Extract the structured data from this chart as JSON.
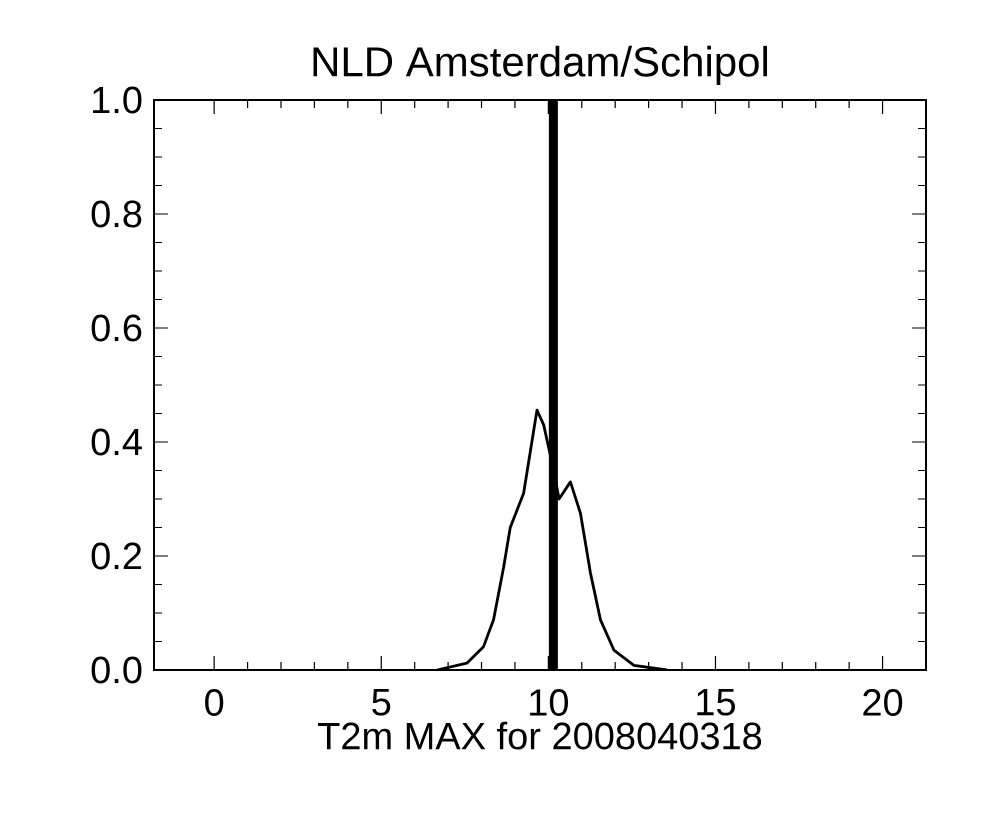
{
  "chart_data": {
    "type": "line",
    "title": "NLD   Amsterdam/Schipol",
    "xlabel": "T2m MAX for 2008040318",
    "x": [
      6.67,
      7.56,
      8.06,
      8.36,
      8.66,
      8.86,
      9.26,
      9.66,
      9.86,
      10.16,
      10.32,
      10.66,
      10.96,
      11.26,
      11.56,
      11.96,
      12.56,
      13.55
    ],
    "series": [
      {
        "color": "#000000",
        "values": [
          0,
          0.012,
          0.041,
          0.088,
          0.18,
          0.25,
          0.31,
          0.456,
          0.43,
          0.35,
          0.3,
          0.33,
          0.275,
          0.17,
          0.088,
          0.035,
          0.008,
          0
        ]
      }
    ],
    "xlim": [
      -1.8,
      21.3
    ],
    "ylim": [
      0,
      1
    ],
    "xticks": [
      0,
      5,
      10,
      15,
      20
    ],
    "yticks": [
      {
        "value": 0,
        "label": "0.0"
      },
      {
        "value": 0.2,
        "label": "0.2"
      },
      {
        "value": 0.4,
        "label": "0.4"
      },
      {
        "value": 0.6,
        "label": "0.6"
      },
      {
        "value": 0.8,
        "label": "0.8"
      },
      {
        "value": 1,
        "label": "1.0"
      }
    ],
    "ref_lines": [
      {
        "axis": "x",
        "value": 10.15,
        "color": "#000000"
      }
    ],
    "marker": "none",
    "line_style": "solid"
  }
}
